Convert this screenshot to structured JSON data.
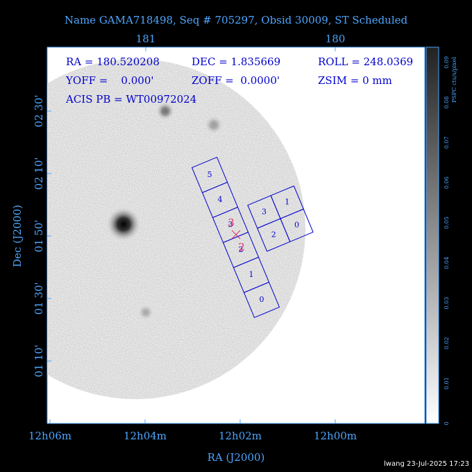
{
  "header": {
    "title": "Name GAMA718498, Seq # 705297, Obsid 30009, ST Scheduled"
  },
  "top_axis": {
    "ticks": [
      "181",
      "180"
    ]
  },
  "info": {
    "ra": "RA = 180.520208",
    "dec": "DEC = 1.835669",
    "roll": "ROLL = 248.0369",
    "yoff": "YOFF =    0.000'",
    "zoff": "ZOFF =  0.0000'",
    "zsim": "ZSIM = 0 mm",
    "acis_pb": "ACIS PB = WT00972024"
  },
  "left_axis": {
    "label": "Dec (J2000)",
    "ticks": [
      "02 30'",
      "02 10'",
      "01 50'",
      "01 30'",
      "01 10'"
    ]
  },
  "bottom_axis": {
    "label": "RA (J2000)",
    "ticks": [
      "12h06m",
      "12h04m",
      "12h02m",
      "12h00m"
    ]
  },
  "colorbar": {
    "label": "PSPC cts/s/pixel",
    "ticks": [
      "0",
      "0.01",
      "0.02",
      "0.03",
      "0.04",
      "0.05",
      "0.06",
      "0.07",
      "0.08",
      "0.09"
    ]
  },
  "acis_s": {
    "chips": [
      "5",
      "4",
      "3",
      "2",
      "1",
      "0"
    ]
  },
  "acis_i": {
    "chips": [
      "3",
      "1",
      "2",
      "0"
    ]
  },
  "aimpoint": {
    "labels": [
      "3",
      "2"
    ]
  },
  "footer": {
    "text": "lwang 23-Jul-2025 17:23"
  }
}
